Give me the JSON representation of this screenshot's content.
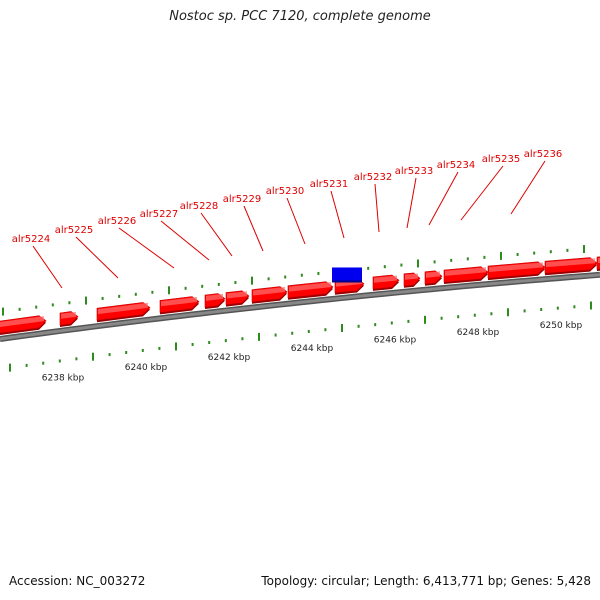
{
  "title": "Nostoc sp. PCC 7120, complete genome",
  "footer": {
    "accession": "Accession: NC_003272",
    "stats": "Topology: circular; Length: 6,413,771 bp; Genes: 5,428"
  },
  "colors": {
    "forward_gene": "#ff0000",
    "highlight_gene": "#0000ee",
    "backbone": "#888888",
    "tick": "#2e8b1e",
    "gene_label": "#dd0000",
    "kbp_label": "#222222"
  },
  "ruler": {
    "unit": "kbp",
    "labels": [
      {
        "kbp": 6238,
        "text": "6238 kbp"
      },
      {
        "kbp": 6240,
        "text": "6240 kbp"
      },
      {
        "kbp": 6242,
        "text": "6242 kbp"
      },
      {
        "kbp": 6244,
        "text": "6244 kbp"
      },
      {
        "kbp": 6246,
        "text": "6246 kbp"
      },
      {
        "kbp": 6248,
        "text": "6248 kbp"
      },
      {
        "kbp": 6250,
        "text": "6250 kbp"
      }
    ]
  },
  "gene_labels": [
    {
      "name": "alr5224"
    },
    {
      "name": "alr5225"
    },
    {
      "name": "alr5226"
    },
    {
      "name": "alr5227"
    },
    {
      "name": "alr5228"
    },
    {
      "name": "alr5229"
    },
    {
      "name": "alr5230"
    },
    {
      "name": "alr5231"
    },
    {
      "name": "alr5232"
    },
    {
      "name": "alr5233"
    },
    {
      "name": "alr5234"
    },
    {
      "name": "alr5235"
    },
    {
      "name": "alr5236"
    }
  ]
}
